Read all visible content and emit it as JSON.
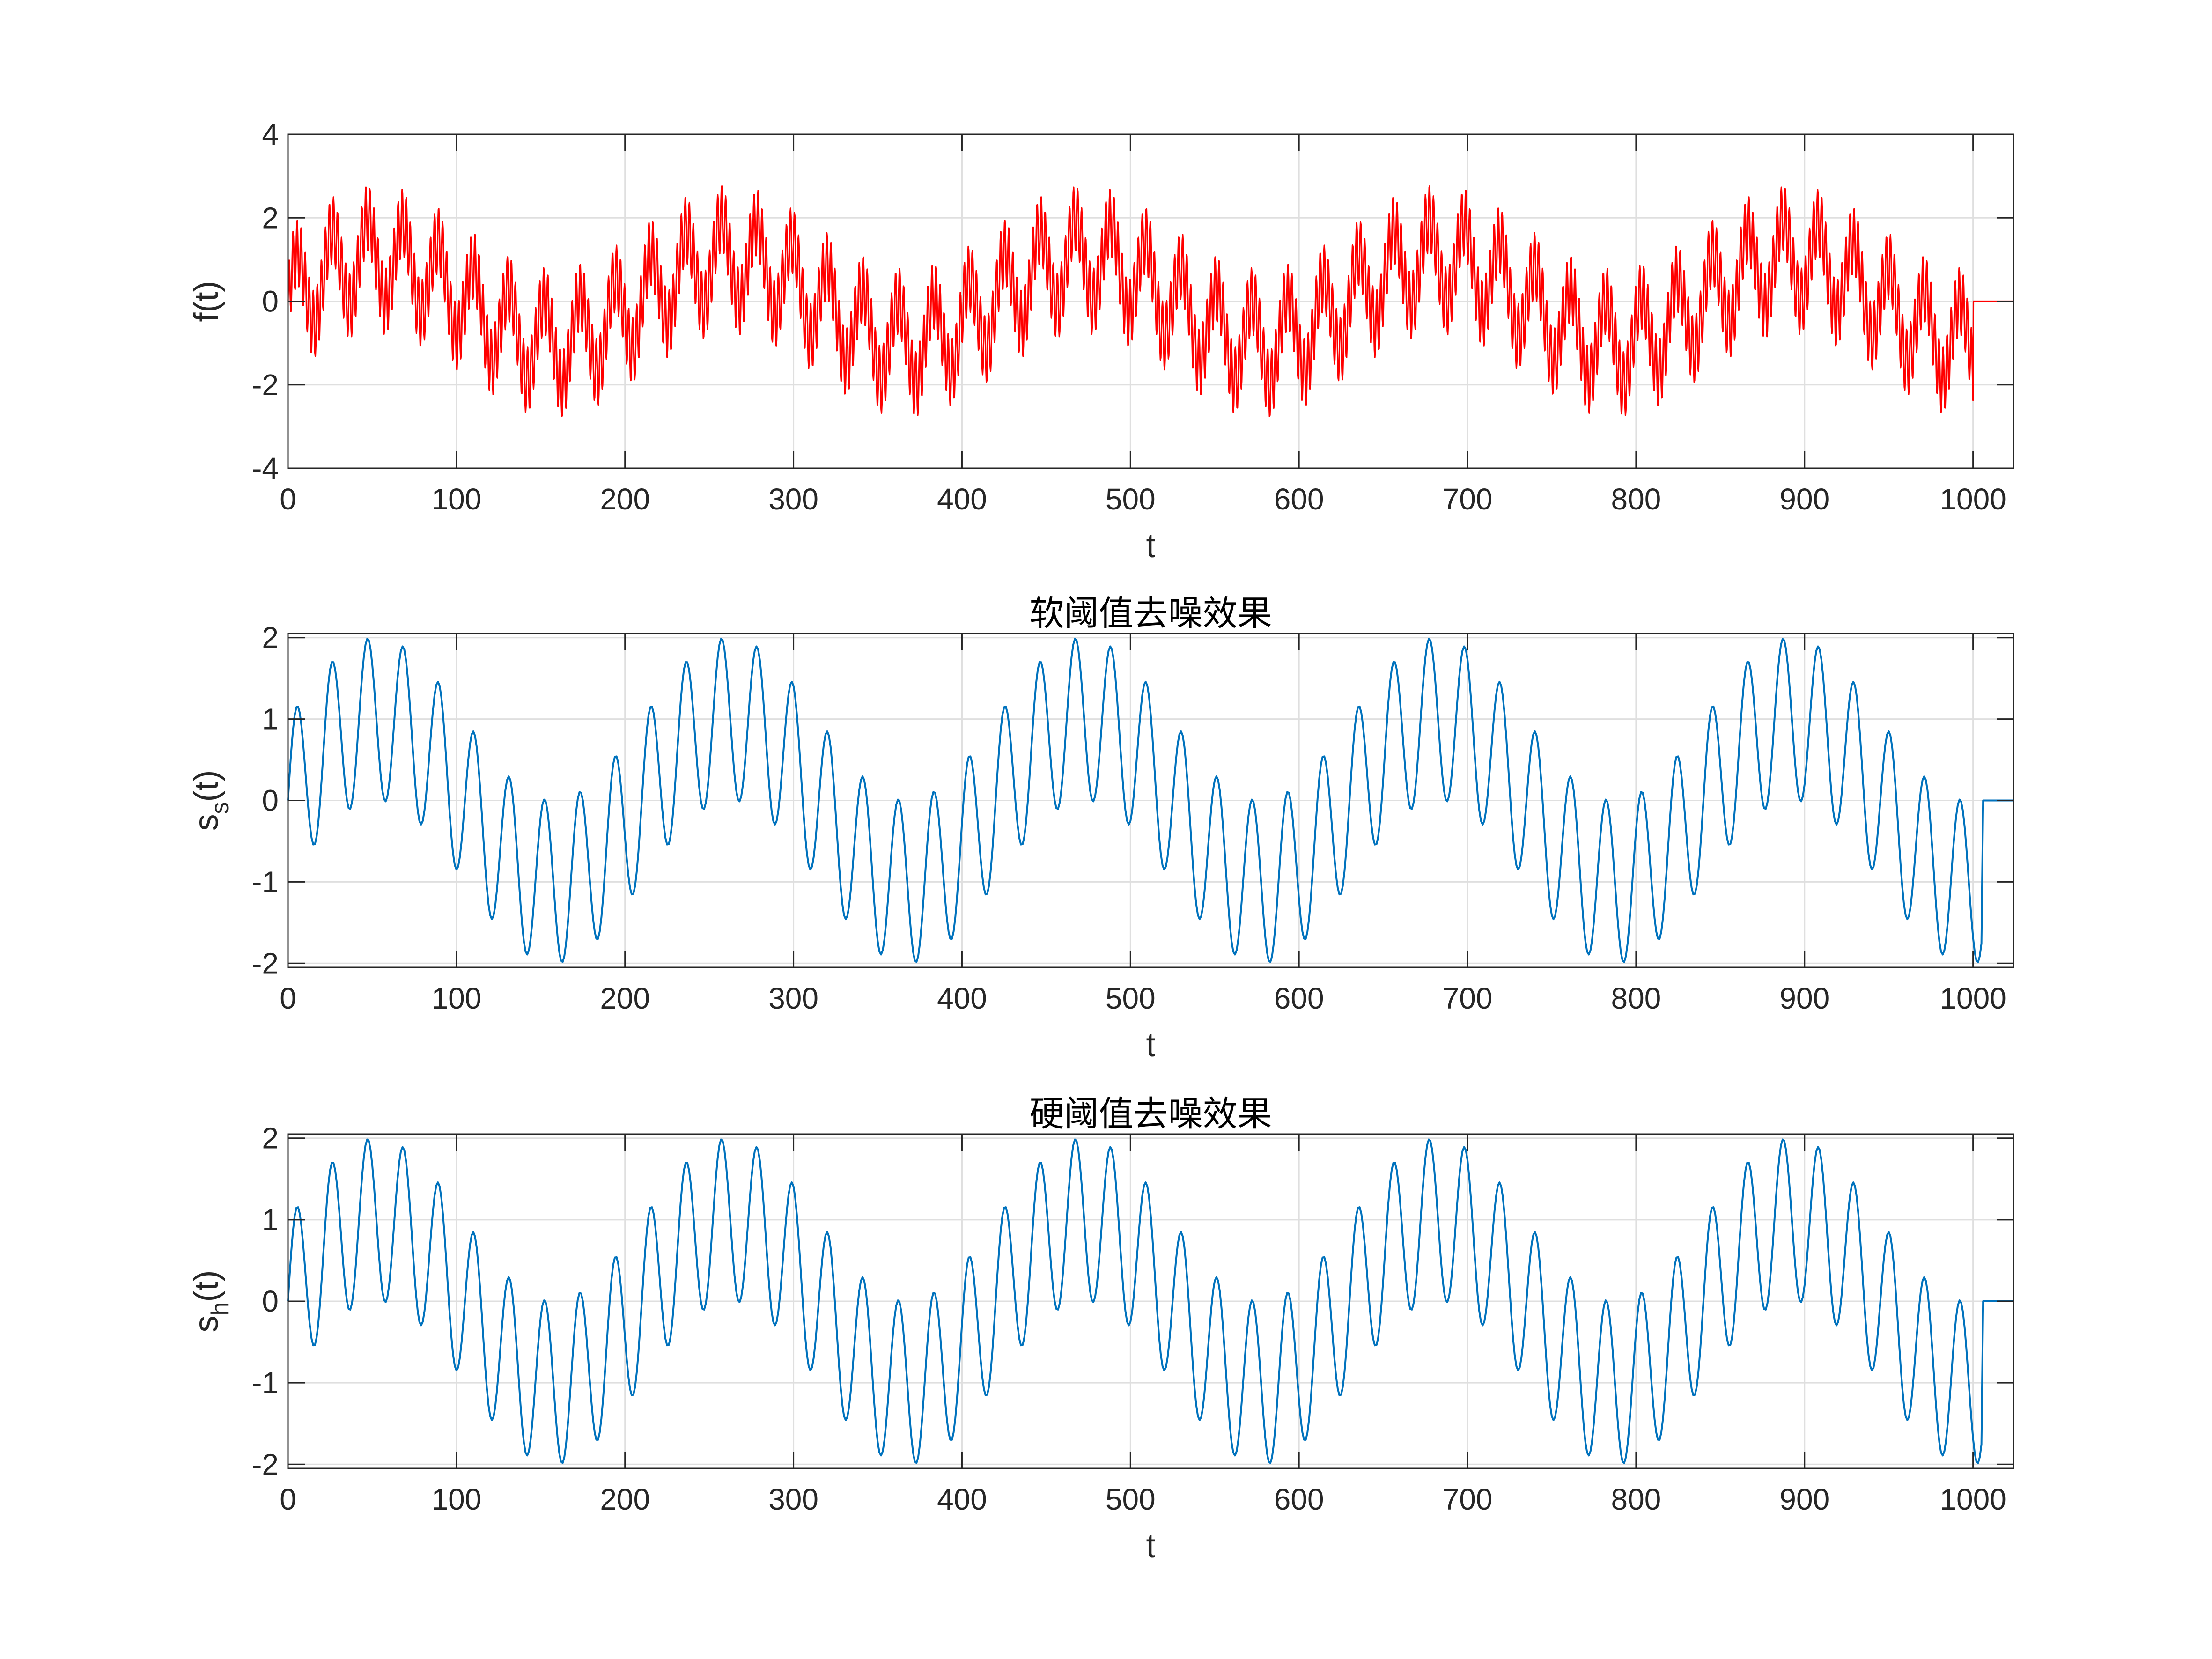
{
  "chart_data": [
    {
      "type": "line",
      "title": "",
      "xlabel": "t",
      "ylabel": "f(t)",
      "xlim": [
        0,
        1024
      ],
      "ylim": [
        -4,
        4
      ],
      "xticks": [
        0,
        100,
        200,
        300,
        400,
        500,
        600,
        700,
        800,
        900,
        1000
      ],
      "yticks": [
        -4,
        -2,
        0,
        2,
        4
      ],
      "grid": true,
      "series": [
        {
          "color": "#ff0000",
          "signal": "noisy",
          "x_range": [
            0,
            1024
          ],
          "nonzero_until": 1000,
          "components": [
            {
              "amplitude": 1.0,
              "period": 210
            },
            {
              "amplitude": 1.0,
              "period": 21
            },
            {
              "amplitude": 0.8,
              "period": 2.4
            }
          ]
        }
      ]
    },
    {
      "type": "line",
      "title": "软阈值去噪效果",
      "xlabel": "t",
      "ylabel": "s",
      "ylabel_sub": "s",
      "ylabel_suffix": "(t)",
      "xlim": [
        0,
        1024
      ],
      "ylim": [
        -2.05,
        2.05
      ],
      "xticks": [
        0,
        100,
        200,
        300,
        400,
        500,
        600,
        700,
        800,
        900,
        1000
      ],
      "yticks": [
        -2,
        -1,
        0,
        1,
        2
      ],
      "grid": true,
      "series": [
        {
          "color": "#0072bd",
          "signal": "denoised",
          "x_range": [
            0,
            1024
          ],
          "nonzero_until": 1005,
          "components": [
            {
              "amplitude": 1.0,
              "period": 210
            },
            {
              "amplitude": 1.0,
              "period": 21
            }
          ]
        }
      ]
    },
    {
      "type": "line",
      "title": "硬阈值去噪效果",
      "xlabel": "t",
      "ylabel": "s",
      "ylabel_sub": "h",
      "ylabel_suffix": "(t)",
      "xlim": [
        0,
        1024
      ],
      "ylim": [
        -2.05,
        2.05
      ],
      "xticks": [
        0,
        100,
        200,
        300,
        400,
        500,
        600,
        700,
        800,
        900,
        1000
      ],
      "yticks": [
        -2,
        -1,
        0,
        1,
        2
      ],
      "grid": true,
      "series": [
        {
          "color": "#0072bd",
          "signal": "denoised",
          "x_range": [
            0,
            1024
          ],
          "nonzero_until": 1005,
          "components": [
            {
              "amplitude": 1.0,
              "period": 210
            },
            {
              "amplitude": 1.0,
              "period": 21
            }
          ]
        }
      ]
    }
  ]
}
